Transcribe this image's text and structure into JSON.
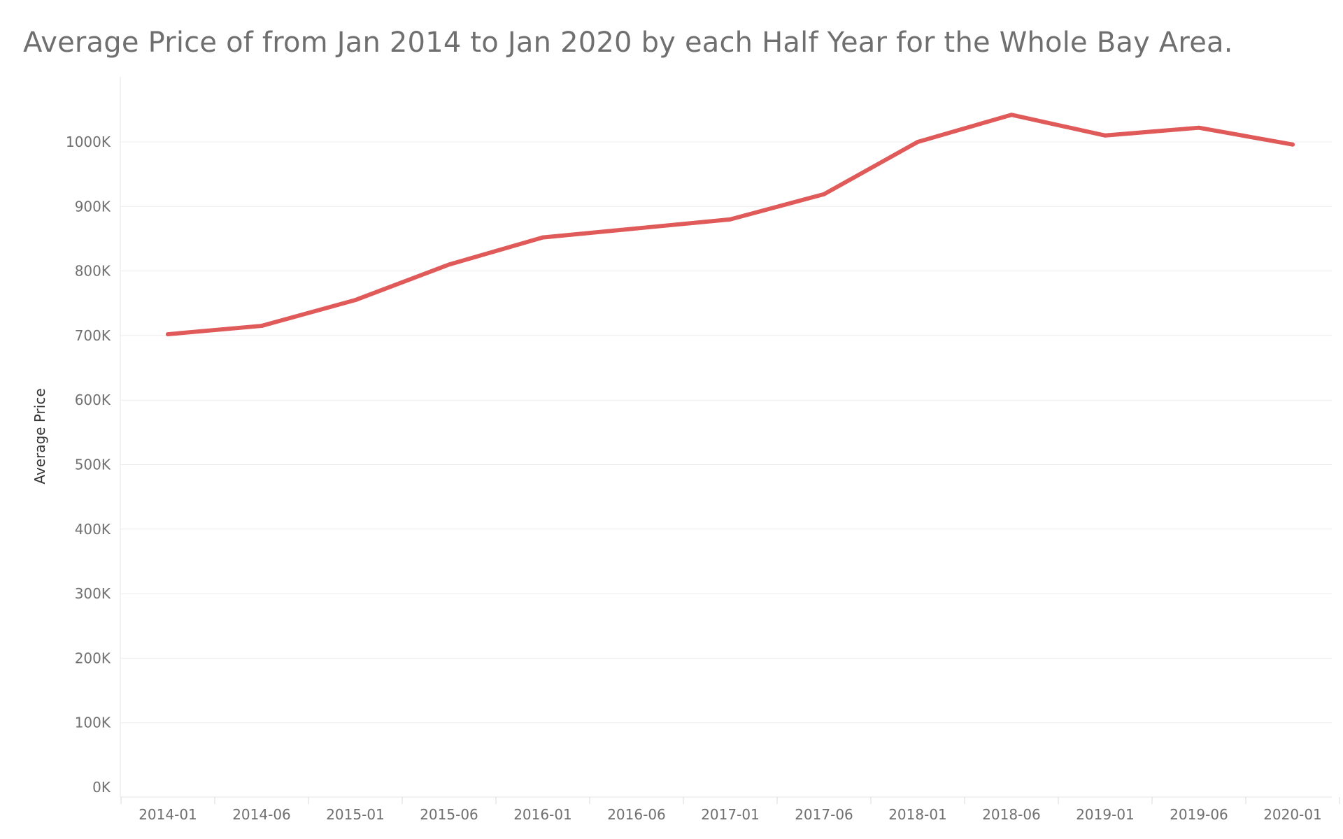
{
  "chart_data": {
    "type": "line",
    "title": "Average Price of from Jan 2014 to Jan 2020 by each Half Year for the Whole Bay Area.",
    "xlabel": "",
    "ylabel": "Average Price",
    "categories": [
      "2014-01",
      "2014-06",
      "2015-01",
      "2015-06",
      "2016-01",
      "2016-06",
      "2017-01",
      "2017-06",
      "2018-01",
      "2018-06",
      "2019-01",
      "2019-06",
      "2020-01"
    ],
    "series": [
      {
        "values": [
          702000,
          715000,
          755000,
          810000,
          852000,
          866000,
          880000,
          919000,
          1000000,
          1042000,
          1010000,
          1022000,
          996000
        ]
      }
    ],
    "y_ticks": [
      0,
      100000,
      200000,
      300000,
      400000,
      500000,
      600000,
      700000,
      800000,
      900000,
      1000000
    ],
    "y_tick_labels": [
      "0K",
      "100K",
      "200K",
      "300K",
      "400K",
      "500K",
      "600K",
      "700K",
      "800K",
      "900K",
      "1000K"
    ],
    "ylim": [
      0,
      1100000
    ],
    "grid": true,
    "legend": "none",
    "colors": {
      "line": "#e05a5a",
      "grid": "#ececec",
      "text": "#6f6f6f"
    }
  }
}
